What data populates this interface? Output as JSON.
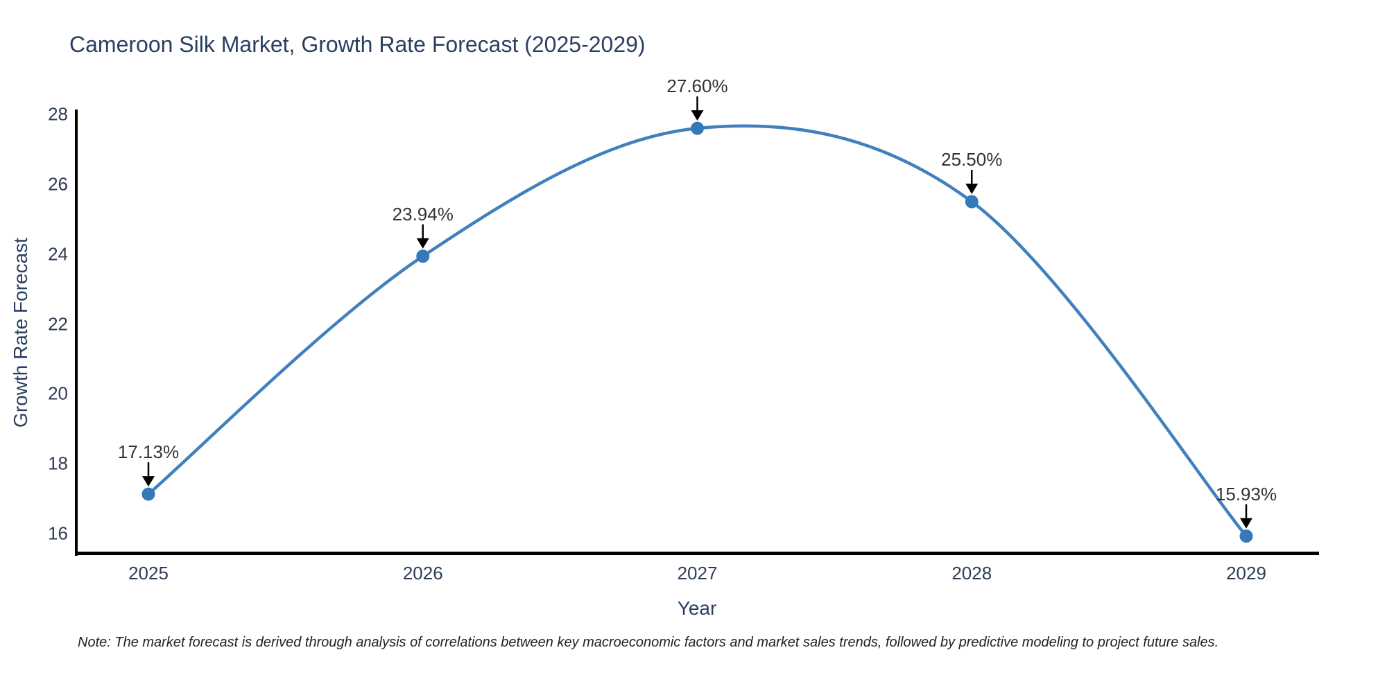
{
  "title": "Cameroon Silk Market, Growth Rate Forecast (2025-2029)",
  "note": "Note: The market forecast is derived through analysis of correlations between key macroeconomic factors and market sales trends, followed by predictive modeling to project future sales.",
  "chart_data": {
    "type": "line",
    "title": "Cameroon Silk Market, Growth Rate Forecast (2025-2029)",
    "xlabel": "Year",
    "ylabel": "Growth Rate Forecast",
    "x": [
      2025,
      2026,
      2027,
      2028,
      2029
    ],
    "values": [
      17.13,
      23.94,
      27.6,
      25.5,
      15.93
    ],
    "point_labels": [
      "17.13%",
      "23.94%",
      "27.60%",
      "25.50%",
      "15.93%"
    ],
    "y_ticks": [
      16,
      18,
      20,
      22,
      24,
      26,
      28
    ],
    "ylim": [
      15.4,
      28.2
    ],
    "xlim": [
      2024.73,
      2029.26
    ],
    "line_shape": "spline",
    "grid": false,
    "legend_position": "none",
    "colors": {
      "line": "#4180bd",
      "marker": "#3579b8",
      "arrow": "#000000",
      "title_text": "#2a3f5f",
      "tick_text": "#2e3d54",
      "annotation_text": "#333333"
    }
  }
}
